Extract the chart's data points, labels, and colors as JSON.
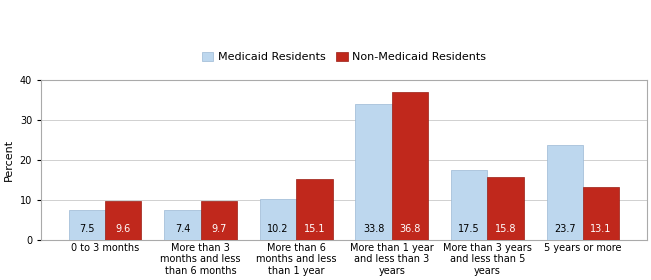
{
  "categories": [
    "0 to 3 months",
    "More than 3\nmonths and less\nthan 6 months",
    "More than 6\nmonths and less\nthan 1 year",
    "More than 1 year\nand less than 3\nyears",
    "More than 3 years\nand less than 5\nyears",
    "5 years or more"
  ],
  "medicaid_values": [
    7.5,
    7.4,
    10.2,
    33.8,
    17.5,
    23.7
  ],
  "non_medicaid_values": [
    9.6,
    9.7,
    15.1,
    36.8,
    15.8,
    13.1
  ],
  "medicaid_color": "#BDD7EE",
  "non_medicaid_color": "#C0281C",
  "medicaid_edge": "#9BB8D4",
  "non_medicaid_edge": "#9B1E14",
  "medicaid_label": "Medicaid Residents",
  "non_medicaid_label": "Non-Medicaid Residents",
  "ylabel": "Percent",
  "ylim": [
    0,
    40
  ],
  "yticks": [
    0,
    10,
    20,
    30,
    40
  ],
  "bar_width": 0.38,
  "background_color": "#ffffff",
  "grid_color": "#d0d0d0",
  "label_fontsize": 7,
  "axis_fontsize": 8,
  "legend_fontsize": 8,
  "tick_fontsize": 7
}
